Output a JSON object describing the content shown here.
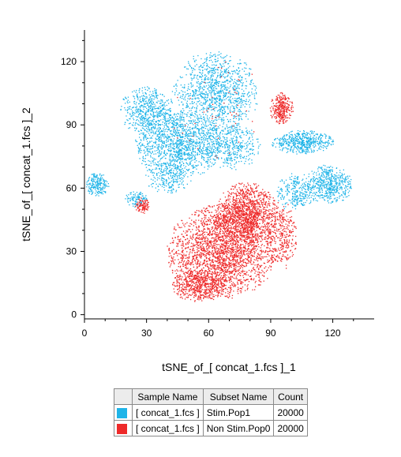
{
  "chart_data": {
    "type": "scatter",
    "xlabel": "tSNE_of_[ concat_1.fcs ]_1",
    "ylabel": "tSNE_of_[ concat_1.fcs ]_2",
    "xlim": [
      0,
      140
    ],
    "ylim": [
      -2,
      135
    ],
    "xticks": [
      "0",
      "30",
      "60",
      "90",
      "120"
    ],
    "yticks": [
      "0",
      "30",
      "60",
      "90",
      "120"
    ],
    "grid": false,
    "legend_position": "bottom",
    "series": [
      {
        "name": "Stim.Pop1",
        "color": "#1fb4e8",
        "count": 20000,
        "clusters": [
          {
            "cx": 63,
            "cy": 105,
            "sx": 11,
            "sy": 11,
            "w": 0.22
          },
          {
            "cx": 45,
            "cy": 81,
            "sx": 11,
            "sy": 9,
            "w": 0.25
          },
          {
            "cx": 30,
            "cy": 97,
            "sx": 7,
            "sy": 6,
            "w": 0.1
          },
          {
            "cx": 70,
            "cy": 80,
            "sx": 8,
            "sy": 6,
            "w": 0.08
          },
          {
            "cx": 105,
            "cy": 82,
            "sx": 8,
            "sy": 3,
            "w": 0.1
          },
          {
            "cx": 118,
            "cy": 62,
            "sx": 6,
            "sy": 5,
            "w": 0.1
          },
          {
            "cx": 102,
            "cy": 58,
            "sx": 5,
            "sy": 5,
            "w": 0.05
          },
          {
            "cx": 6,
            "cy": 62,
            "sx": 3,
            "sy": 3,
            "w": 0.04
          },
          {
            "cx": 25,
            "cy": 55,
            "sx": 3,
            "sy": 2,
            "w": 0.02
          },
          {
            "cx": 40,
            "cy": 65,
            "sx": 6,
            "sy": 4,
            "w": 0.04
          }
        ]
      },
      {
        "name": "Non Stim.Pop0",
        "color": "#ee2a2a",
        "count": 20000,
        "clusters": [
          {
            "cx": 66,
            "cy": 30,
            "sx": 14,
            "sy": 12,
            "w": 0.5
          },
          {
            "cx": 78,
            "cy": 48,
            "sx": 8,
            "sy": 8,
            "w": 0.25
          },
          {
            "cx": 95,
            "cy": 37,
            "sx": 4,
            "sy": 9,
            "w": 0.06
          },
          {
            "cx": 55,
            "cy": 14,
            "sx": 7,
            "sy": 4,
            "w": 0.1
          },
          {
            "cx": 95,
            "cy": 98,
            "sx": 3,
            "sy": 4,
            "w": 0.06
          },
          {
            "cx": 28,
            "cy": 52,
            "sx": 2,
            "sy": 2,
            "w": 0.02
          },
          {
            "cx": 65,
            "cy": 95,
            "sx": 12,
            "sy": 15,
            "w": 0.01
          }
        ]
      }
    ]
  },
  "legend": {
    "headers": [
      "Sample Name",
      "Subset Name",
      "Count"
    ],
    "rows": [
      {
        "color": "#1fb4e8",
        "sample": "[ concat_1.fcs ]",
        "subset": "Stim.Pop1",
        "count": "20000"
      },
      {
        "color": "#ee2a2a",
        "sample": "[ concat_1.fcs ]",
        "subset": "Non Stim.Pop0",
        "count": "20000"
      }
    ]
  }
}
